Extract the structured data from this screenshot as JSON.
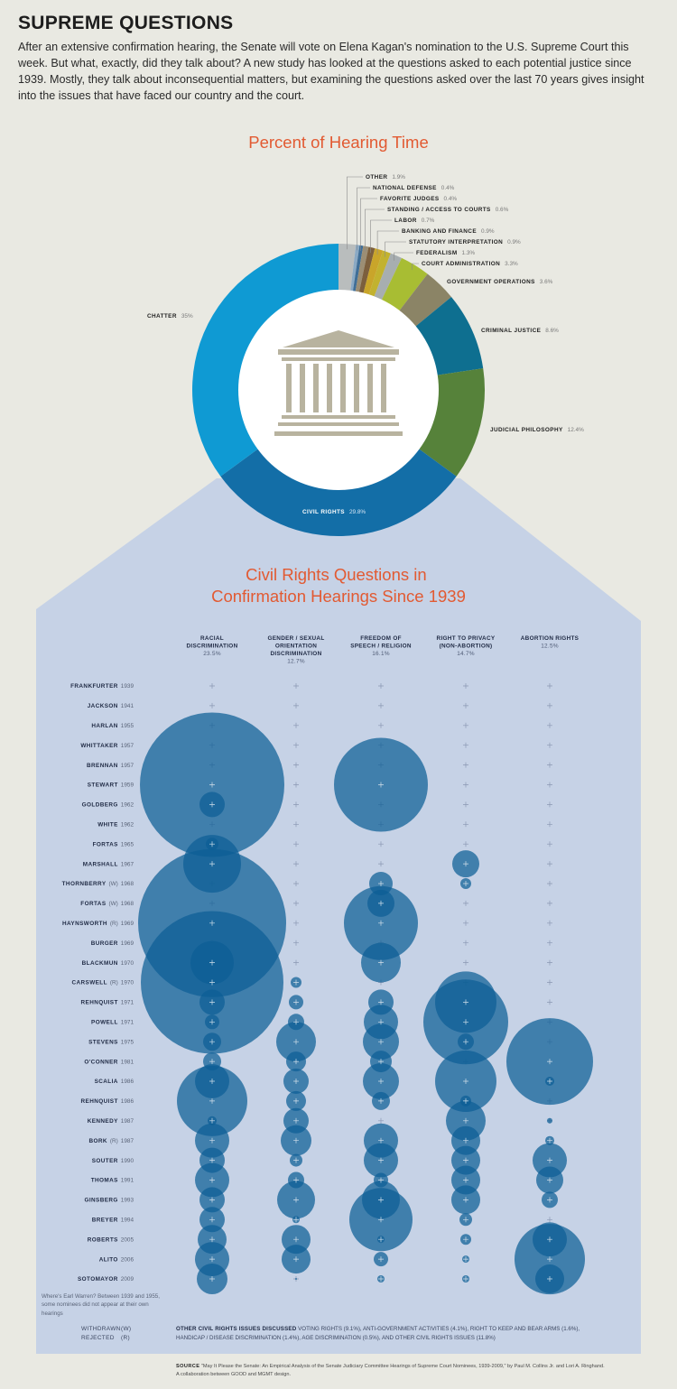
{
  "header": {
    "title": "SUPREME QUESTIONS",
    "intro": "After an extensive confirmation hearing, the Senate will vote on Elena Kagan's nomination to the U.S. Supreme Court this week. But what, exactly, did they talk about? A new study has looked at the questions asked to each potential justice since 1939. Mostly, they talk about inconsequential matters, but examining the questions asked over the last 70 years gives insight into the issues that have faced our country and the court."
  },
  "chart_data": [
    {
      "type": "pie",
      "title": "Percent of Hearing Time",
      "slices": [
        {
          "label": "OTHER",
          "value": 1.9,
          "display": "1.9%",
          "color": "#b9bdbd"
        },
        {
          "label": "NATIONAL DEFENSE",
          "value": 0.4,
          "display": "0.4%",
          "color": "#8aa9c4"
        },
        {
          "label": "FAVORITE JUDGES",
          "value": 0.4,
          "display": "0.4%",
          "color": "#3f6e97"
        },
        {
          "label": "STANDING / ACCESS TO COURTS",
          "value": 0.6,
          "display": "0.6%",
          "color": "#9c8e74"
        },
        {
          "label": "LABOR",
          "value": 0.7,
          "display": "0.7%",
          "color": "#7c5f3d"
        },
        {
          "label": "BANKING AND FINANCE",
          "value": 0.9,
          "display": "0.9%",
          "color": "#c9a52a"
        },
        {
          "label": "STATUTORY INTERPRETATION",
          "value": 0.9,
          "display": "0.9%",
          "color": "#c2b22f"
        },
        {
          "label": "FEDERALISM",
          "value": 1.3,
          "display": "1.3%",
          "color": "#a7aeb0"
        },
        {
          "label": "COURT ADMINISTRATION",
          "value": 3.3,
          "display": "3.3%",
          "color": "#a8bd33"
        },
        {
          "label": "GOVERNMENT OPERATIONS",
          "value": 3.6,
          "display": "3.6%",
          "color": "#8b8466"
        },
        {
          "label": "CRIMINAL JUSTICE",
          "value": 8.6,
          "display": "8.6%",
          "color": "#0e6f90"
        },
        {
          "label": "JUDICIAL PHILOSOPHY",
          "value": 12.4,
          "display": "12.4%",
          "color": "#56823a"
        },
        {
          "label": "CIVIL RIGHTS",
          "value": 29.8,
          "display": "29.8%",
          "color": "#136ea7"
        },
        {
          "label": "CHATTER",
          "value": 35,
          "display": "35%",
          "color": "#0f9ad3"
        }
      ]
    },
    {
      "type": "bubble-matrix",
      "title": "Civil Rights Questions in Confirmation Hearings Since 1939",
      "columns": [
        {
          "label": "RACIAL DISCRIMINATION",
          "pct": "23.5%"
        },
        {
          "label": "GENDER / SEXUAL ORIENTATION DISCRIMINATION",
          "pct": "12.7%"
        },
        {
          "label": "FREEDOM OF SPEECH / RELIGION",
          "pct": "16.1%"
        },
        {
          "label": "RIGHT TO PRIVACY (NON-ABORTION)",
          "pct": "14.7%"
        },
        {
          "label": "ABORTION RIGHTS",
          "pct": "12.5%"
        }
      ],
      "rows": [
        {
          "name": "FRANKFURTER",
          "code": "",
          "year": "1939",
          "r": [
            0,
            0,
            0,
            0,
            0
          ]
        },
        {
          "name": "JACKSON",
          "code": "",
          "year": "1941",
          "r": [
            0,
            0,
            0,
            0,
            0
          ]
        },
        {
          "name": "HARLAN",
          "code": "",
          "year": "1955",
          "r": [
            0,
            0,
            0,
            0,
            0
          ]
        },
        {
          "name": "WHITTAKER",
          "code": "",
          "year": "1957",
          "r": [
            0,
            0,
            0,
            0,
            0
          ]
        },
        {
          "name": "BRENNAN",
          "code": "",
          "year": "1957",
          "r": [
            0,
            0,
            0,
            0,
            0
          ]
        },
        {
          "name": "STEWART",
          "code": "",
          "year": "1959",
          "r": [
            80,
            0,
            52,
            0,
            0
          ]
        },
        {
          "name": "GOLDBERG",
          "code": "",
          "year": "1962",
          "r": [
            14,
            0,
            0,
            0,
            0
          ]
        },
        {
          "name": "WHITE",
          "code": "",
          "year": "1962",
          "r": [
            0,
            0,
            0,
            0,
            0
          ]
        },
        {
          "name": "FORTAS",
          "code": "",
          "year": "1965",
          "r": [
            7,
            0,
            0,
            0,
            0
          ]
        },
        {
          "name": "MARSHALL",
          "code": "",
          "year": "1967",
          "r": [
            32,
            0,
            0,
            15,
            0
          ]
        },
        {
          "name": "THORNBERRY",
          "code": "(W)",
          "year": "1968",
          "r": [
            0,
            0,
            13,
            6,
            0
          ]
        },
        {
          "name": "FORTAS",
          "code": "(W)",
          "year": "1968",
          "r": [
            0,
            0,
            15,
            0,
            0
          ]
        },
        {
          "name": "HAYNSWORTH",
          "code": "(R)",
          "year": "1969",
          "r": [
            82,
            0,
            41,
            0,
            0
          ]
        },
        {
          "name": "BURGER",
          "code": "",
          "year": "1969",
          "r": [
            0,
            0,
            0,
            0,
            0
          ]
        },
        {
          "name": "BLACKMUN",
          "code": "",
          "year": "1970",
          "r": [
            24,
            0,
            22,
            0,
            0
          ]
        },
        {
          "name": "CARSWELL",
          "code": "(R)",
          "year": "1970",
          "r": [
            79,
            6,
            0,
            0,
            0
          ]
        },
        {
          "name": "REHNQUIST",
          "code": "",
          "year": "1971",
          "r": [
            14,
            8,
            14,
            34,
            0
          ]
        },
        {
          "name": "POWELL",
          "code": "",
          "year": "1971",
          "r": [
            8,
            9,
            19,
            47,
            0
          ]
        },
        {
          "name": "STEVENS",
          "code": "",
          "year": "1975",
          "r": [
            10,
            22,
            20,
            9,
            0
          ]
        },
        {
          "name": "O'CONNER",
          "code": "",
          "year": "1981",
          "r": [
            10,
            11,
            12,
            0,
            48
          ]
        },
        {
          "name": "SCALIA",
          "code": "",
          "year": "1986",
          "r": [
            19,
            14,
            20,
            34,
            5
          ]
        },
        {
          "name": "REHNQUIST",
          "code": "",
          "year": "1986",
          "r": [
            39,
            11,
            10,
            6,
            0
          ]
        },
        {
          "name": "KENNEDY",
          "code": "",
          "year": "1987",
          "r": [
            5,
            14,
            0,
            22,
            3
          ]
        },
        {
          "name": "BORK",
          "code": "(R)",
          "year": "1987",
          "r": [
            19,
            17,
            19,
            16,
            5
          ]
        },
        {
          "name": "SOUTER",
          "code": "",
          "year": "1990",
          "r": [
            14,
            7,
            19,
            16,
            19
          ]
        },
        {
          "name": "THOMAS",
          "code": "",
          "year": "1991",
          "r": [
            19,
            9,
            8,
            16,
            15
          ]
        },
        {
          "name": "GINSBERG",
          "code": "",
          "year": "1993",
          "r": [
            14,
            21,
            21,
            16,
            9
          ]
        },
        {
          "name": "BREYER",
          "code": "",
          "year": "1994",
          "r": [
            14,
            4,
            35,
            7,
            0
          ]
        },
        {
          "name": "ROBERTS",
          "code": "",
          "year": "2005",
          "r": [
            16,
            16,
            4,
            6,
            19
          ]
        },
        {
          "name": "ALITO",
          "code": "",
          "year": "2006",
          "r": [
            19,
            16,
            8,
            4,
            39
          ]
        },
        {
          "name": "SOTOMAYOR",
          "code": "",
          "year": "2009",
          "r": [
            17,
            1,
            4,
            4,
            16
          ]
        }
      ]
    }
  ],
  "notes": {
    "warren": "Where's Earl Warren? Between 1939 and 1955, some nominees did not appear at their own hearings",
    "withdrawn": "WITHDRAWN",
    "withdrawn_code": "(W)",
    "rejected": "REJECTED",
    "rejected_code": "(R)",
    "other_rights_title": "OTHER CIVIL RIGHTS ISSUES DISCUSSED",
    "other_rights_body": "VOTING RIGHTS (9.1%), ANTI-GOVERNMENT ACTIVITIES (4.1%), RIGHT TO KEEP AND BEAR ARMS (1.6%), HANDICAP / DISEASE DISCRIMINATION (1.4%), AGE DISCRIMINATION (0.5%), AND OTHER CIVIL RIGHTS ISSUES (11.8%)",
    "source_title": "SOURCE",
    "source_body": "\"May It Please the Senate: An Empirical Analysis of the Senate Judiciary Committee Hearings of Supreme Court Nominees, 1939-2009,\" by Paul M. Collins Jr. and Lori A. Ringhand.",
    "collab": "A collaboration between GOOD and MGMT design."
  },
  "colors": {
    "background": "#e9e9e2",
    "panel": "#c6d2e6",
    "accent_title": "#e25a32",
    "bubble": "#0d5e96",
    "text_dark": "#222222"
  }
}
